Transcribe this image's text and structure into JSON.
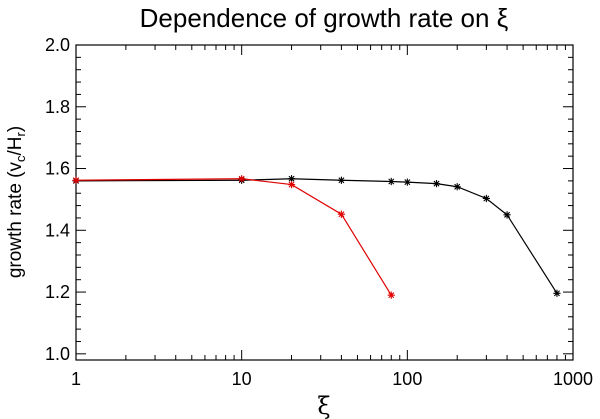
{
  "chart_data": {
    "type": "line",
    "title": "Dependence of growth rate on ξ",
    "xlabel": "ξ",
    "ylabel": {
      "main": "growth rate (v",
      "sub1": "c",
      "mid": "/H",
      "sub2": "r",
      "close": ")"
    },
    "xscale": "log",
    "xlim": [
      1,
      1000
    ],
    "ylim": [
      0.98,
      2.0
    ],
    "xticks": [
      1,
      10,
      100,
      1000
    ],
    "xtick_labels": [
      "1",
      "10",
      "100",
      "1000"
    ],
    "yticks": [
      1.0,
      1.2,
      1.4,
      1.6,
      1.8,
      2.0
    ],
    "ytick_labels": [
      "1.0",
      "1.2",
      "1.4",
      "1.6",
      "1.8",
      "2.0"
    ],
    "grid": false,
    "series": [
      {
        "name": "black series",
        "color": "#000000",
        "marker": "asterisk",
        "x": [
          1,
          10,
          20,
          40,
          80,
          100,
          150,
          200,
          300,
          400,
          800
        ],
        "y": [
          1.56,
          1.562,
          1.567,
          1.562,
          1.558,
          1.556,
          1.551,
          1.541,
          1.503,
          1.45,
          1.196
        ]
      },
      {
        "name": "red series",
        "color": "#e00000",
        "marker": "asterisk",
        "x": [
          1,
          10,
          20,
          40,
          80
        ],
        "y": [
          1.562,
          1.567,
          1.548,
          1.452,
          1.19
        ]
      }
    ]
  }
}
